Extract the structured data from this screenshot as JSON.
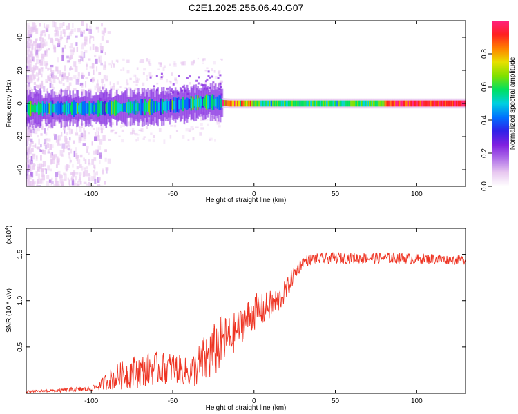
{
  "title": "C2E1.2025.256.06.40.G07",
  "colors": {
    "snr_line": "#ee3322",
    "frame": "#000000",
    "background": "#ffffff"
  },
  "chart_data": [
    {
      "type": "heatmap",
      "name": "spectrogram",
      "title": "C2E1.2025.256.06.40.G07",
      "xlabel": "Height of straight line (km)",
      "ylabel": "Frequency (Hz)",
      "xlim": [
        -140,
        130
      ],
      "ylim": [
        -50,
        50
      ],
      "xticks": [
        -100,
        -50,
        0,
        50,
        100
      ],
      "xtick_labels": [
        "-100",
        "-50",
        "0",
        "50",
        "100"
      ],
      "yticks": [
        -40,
        -20,
        0,
        20,
        40
      ],
      "ytick_labels": [
        "-40",
        "-20",
        "0",
        "20",
        "40"
      ],
      "ridge": {
        "x": [
          -140,
          -100,
          -60,
          -30,
          -15,
          0,
          50,
          130
        ],
        "y": [
          -3,
          -3,
          -2,
          1,
          0,
          0,
          0,
          0
        ]
      },
      "colorbar": {
        "label": "Normalized spectral amplitude",
        "range": [
          0,
          1
        ],
        "ticks": [
          0.0,
          0.2,
          0.4,
          0.6,
          0.8
        ],
        "tick_labels": [
          "0.0",
          "0.2",
          "0.4",
          "0.6",
          "0.8"
        ],
        "colormap": [
          "#ffffff",
          "#e8c8f0",
          "#b070e8",
          "#8020e0",
          "#3020e8",
          "#0070ff",
          "#00d0e0",
          "#00e060",
          "#80e000",
          "#e8e000",
          "#ff8000",
          "#ff2020",
          "#ff2080"
        ]
      }
    },
    {
      "type": "line",
      "name": "snr",
      "xlabel": "Height of straight line (km)",
      "ylabel": "SNR (10 * v/v)",
      "scale_label": "(x10",
      "scale_exp": "4",
      "scale_close": ")",
      "xlim": [
        -140,
        130
      ],
      "ylim": [
        0,
        1.78
      ],
      "xticks": [
        -100,
        -50,
        0,
        50,
        100
      ],
      "xtick_labels": [
        "-100",
        "-50",
        "0",
        "50",
        "100"
      ],
      "yticks": [
        0.5,
        1.0,
        1.5
      ],
      "ytick_labels": [
        "0.5",
        "1.0",
        "1.5"
      ],
      "series": [
        {
          "name": "SNR",
          "x": [
            -140,
            -120,
            -100,
            -95,
            -90,
            -85,
            -80,
            -75,
            -70,
            -65,
            -60,
            -55,
            -50,
            -45,
            -40,
            -35,
            -30,
            -25,
            -20,
            -15,
            -10,
            -5,
            0,
            5,
            10,
            15,
            20,
            25,
            30,
            35,
            40,
            50,
            60,
            70,
            80,
            90,
            100,
            110,
            120,
            130
          ],
          "values": [
            0.02,
            0.03,
            0.05,
            0.08,
            0.14,
            0.17,
            0.2,
            0.23,
            0.24,
            0.26,
            0.27,
            0.27,
            0.28,
            0.25,
            0.22,
            0.28,
            0.36,
            0.45,
            0.55,
            0.6,
            0.7,
            0.8,
            0.88,
            0.9,
            0.95,
            1.0,
            1.12,
            1.3,
            1.42,
            1.45,
            1.45,
            1.46,
            1.46,
            1.46,
            1.46,
            1.46,
            1.45,
            1.45,
            1.44,
            1.44
          ],
          "noise": [
            0.01,
            0.02,
            0.03,
            0.05,
            0.1,
            0.14,
            0.16,
            0.18,
            0.18,
            0.18,
            0.18,
            0.17,
            0.17,
            0.16,
            0.15,
            0.22,
            0.28,
            0.3,
            0.3,
            0.24,
            0.2,
            0.2,
            0.2,
            0.18,
            0.16,
            0.14,
            0.12,
            0.09,
            0.06,
            0.06,
            0.06,
            0.06,
            0.06,
            0.06,
            0.06,
            0.06,
            0.06,
            0.06,
            0.05,
            0.05
          ]
        }
      ]
    }
  ]
}
